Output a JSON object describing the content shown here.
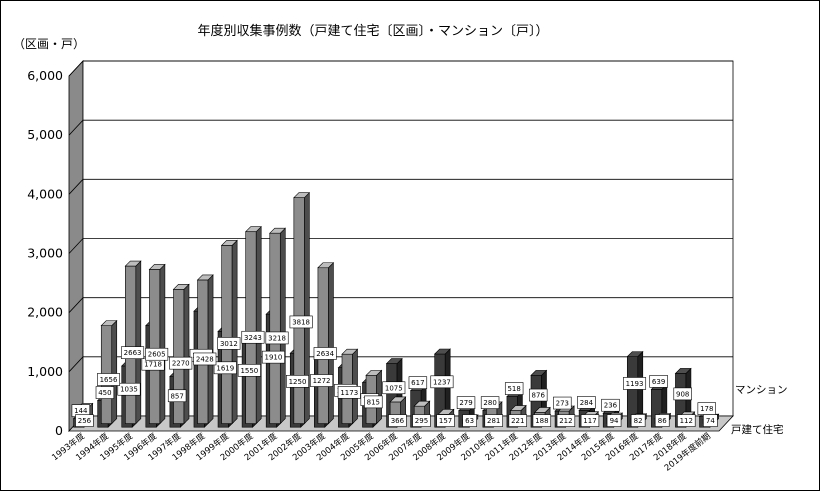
{
  "chart_data": {
    "type": "bar",
    "title": "年度別収集事例数（戸建て住宅〔区画〕・マンション〔戸〕）",
    "ylabel": "（区画・戸）",
    "ylim": [
      0,
      6000
    ],
    "yticks": [
      "0",
      "1,000",
      "2,000",
      "3,000",
      "4,000",
      "5,000",
      "6,000"
    ],
    "grid": true,
    "categories": [
      "1993年度",
      "1994年度",
      "1995年度",
      "1996年度",
      "1997年度",
      "1998年度",
      "1999年度",
      "2000年度",
      "2001年度",
      "2002年度",
      "2003年度",
      "2004年度",
      "2005年度",
      "2006年度",
      "2007年度",
      "2008年度",
      "2009年度",
      "2010年度",
      "2011年度",
      "2012年度",
      "2013年度",
      "2014年度",
      "2015年度",
      "2016年度",
      "2017年度",
      "2018年度",
      "2019年度前期"
    ],
    "series": [
      {
        "name": "戸建て住宅",
        "color": "#8c8c8c",
        "values": [
          256,
          1656,
          2663,
          2605,
          2270,
          2428,
          3012,
          3243,
          3218,
          3818,
          2634,
          1173,
          815,
          366,
          295,
          157,
          63,
          281,
          221,
          188,
          212,
          117,
          94,
          82,
          86,
          112,
          74
        ]
      },
      {
        "name": "マンション",
        "color": "#3a3a3a",
        "values": [
          144,
          450,
          1035,
          1718,
          857,
          1961,
          1619,
          1550,
          1910,
          1250,
          1272,
          1006,
          752,
          1075,
          617,
          1237,
          279,
          280,
          518,
          876,
          273,
          284,
          236,
          1193,
          639,
          908,
          178
        ]
      }
    ]
  }
}
